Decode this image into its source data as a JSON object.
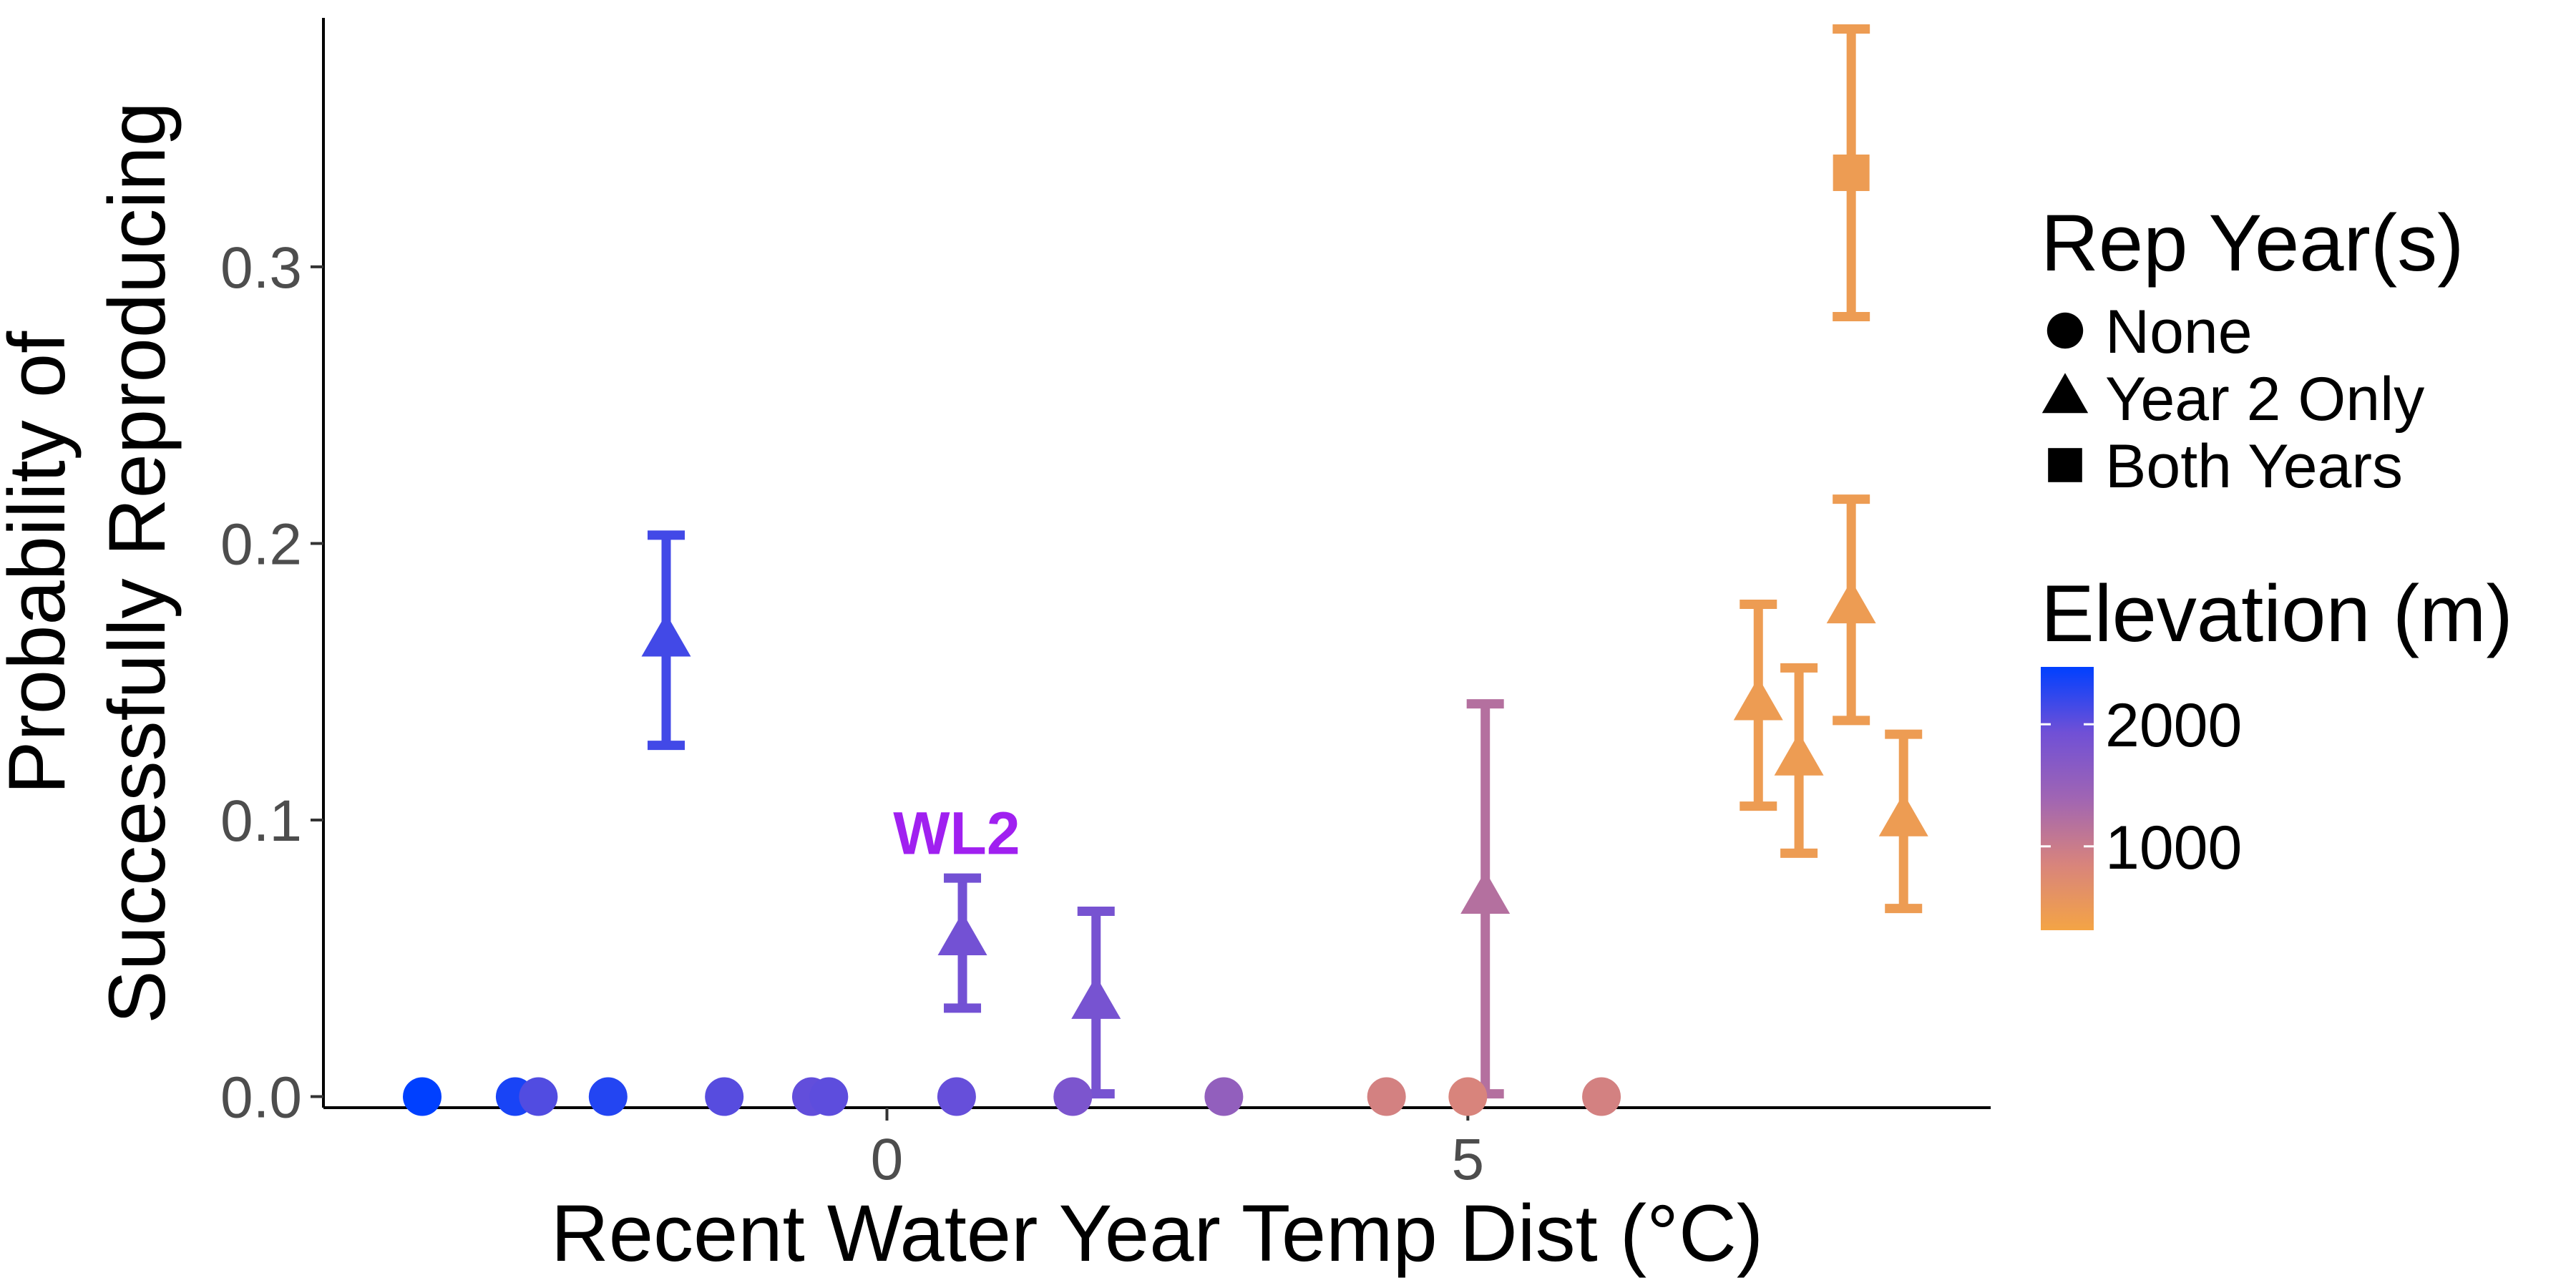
{
  "chart_data": {
    "type": "scatter",
    "title": "",
    "xlabel": "Recent Water Year Temp Dist (°C)",
    "ylabel_lines": [
      "Probability of",
      "Successfully Reproducing"
    ],
    "xlim": [
      -4.85,
      9.5
    ],
    "ylim": [
      -0.004,
      0.39
    ],
    "x_ticks": [
      0,
      5
    ],
    "y_ticks": [
      0.0,
      0.1,
      0.2,
      0.3
    ],
    "y_tick_labels": [
      "0.0",
      "0.1",
      "0.2",
      "0.3"
    ],
    "grid": false,
    "points": [
      {
        "x": -4.0,
        "y": 0.0,
        "shape": "circle",
        "elevation": 2470
      },
      {
        "x": -3.2,
        "y": 0.0,
        "shape": "circle",
        "elevation": 2350
      },
      {
        "x": -3.0,
        "y": 0.0,
        "shape": "circle",
        "elevation": 2080
      },
      {
        "x": -2.4,
        "y": 0.0,
        "shape": "circle",
        "elevation": 2300
      },
      {
        "x": -1.4,
        "y": 0.0,
        "shape": "circle",
        "elevation": 2050
      },
      {
        "x": -0.65,
        "y": 0.0,
        "shape": "circle",
        "elevation": 2000
      },
      {
        "x": -0.5,
        "y": 0.0,
        "shape": "circle",
        "elevation": 2020
      },
      {
        "x": 0.6,
        "y": 0.0,
        "shape": "circle",
        "elevation": 1980
      },
      {
        "x": 1.6,
        "y": 0.0,
        "shape": "circle",
        "elevation": 1800
      },
      {
        "x": 2.9,
        "y": 0.0,
        "shape": "circle",
        "elevation": 1550
      },
      {
        "x": 4.3,
        "y": 0.0,
        "shape": "circle",
        "elevation": 900
      },
      {
        "x": 5.0,
        "y": 0.0,
        "shape": "circle",
        "elevation": 850
      },
      {
        "x": 6.15,
        "y": 0.0,
        "shape": "circle",
        "elevation": 900
      },
      {
        "x": -1.9,
        "y": 0.165,
        "ymin": 0.127,
        "ymax": 0.203,
        "shape": "triangle",
        "elevation": 2150
      },
      {
        "x": 0.65,
        "y": 0.057,
        "ymin": 0.032,
        "ymax": 0.079,
        "shape": "triangle",
        "elevation": 1900,
        "label": "WL2"
      },
      {
        "x": 1.8,
        "y": 0.034,
        "ymin": 0.001,
        "ymax": 0.067,
        "shape": "triangle",
        "elevation": 1850
      },
      {
        "x": 5.15,
        "y": 0.072,
        "ymin": 0.001,
        "ymax": 0.142,
        "shape": "triangle",
        "elevation": 1200
      },
      {
        "x": 7.5,
        "y": 0.142,
        "ymin": 0.105,
        "ymax": 0.178,
        "shape": "triangle",
        "elevation": 450
      },
      {
        "x": 7.85,
        "y": 0.122,
        "ymin": 0.088,
        "ymax": 0.155,
        "shape": "triangle",
        "elevation": 450
      },
      {
        "x": 8.3,
        "y": 0.177,
        "ymin": 0.136,
        "ymax": 0.216,
        "shape": "triangle",
        "elevation": 450
      },
      {
        "x": 8.75,
        "y": 0.1,
        "ymin": 0.068,
        "ymax": 0.131,
        "shape": "triangle",
        "elevation": 450
      },
      {
        "x": 8.3,
        "y": 0.334,
        "ymin": 0.282,
        "ymax": 0.386,
        "shape": "square",
        "elevation": 450
      }
    ],
    "annotation": {
      "text": "WL2",
      "x": 0.6,
      "y": 0.095,
      "color": "#a020f0"
    },
    "legend_shape": {
      "title": "Rep Year(s)",
      "entries": [
        {
          "shape": "circle",
          "label": "None"
        },
        {
          "shape": "triangle",
          "label": "Year 2 Only"
        },
        {
          "shape": "square",
          "label": "Both Years"
        }
      ]
    },
    "legend_color": {
      "title": "Elevation (m)",
      "min": 313,
      "max": 2470,
      "ticks": [
        2000,
        1000
      ],
      "tick_labels": [
        "2000",
        "1000"
      ],
      "low_color": "#f4a445",
      "high_color": "#0040ff",
      "colors": [
        "#f4a445",
        "#d8847c",
        "#a065b3",
        "#7050d6",
        "#0040ff"
      ]
    },
    "legend_position": "right"
  }
}
